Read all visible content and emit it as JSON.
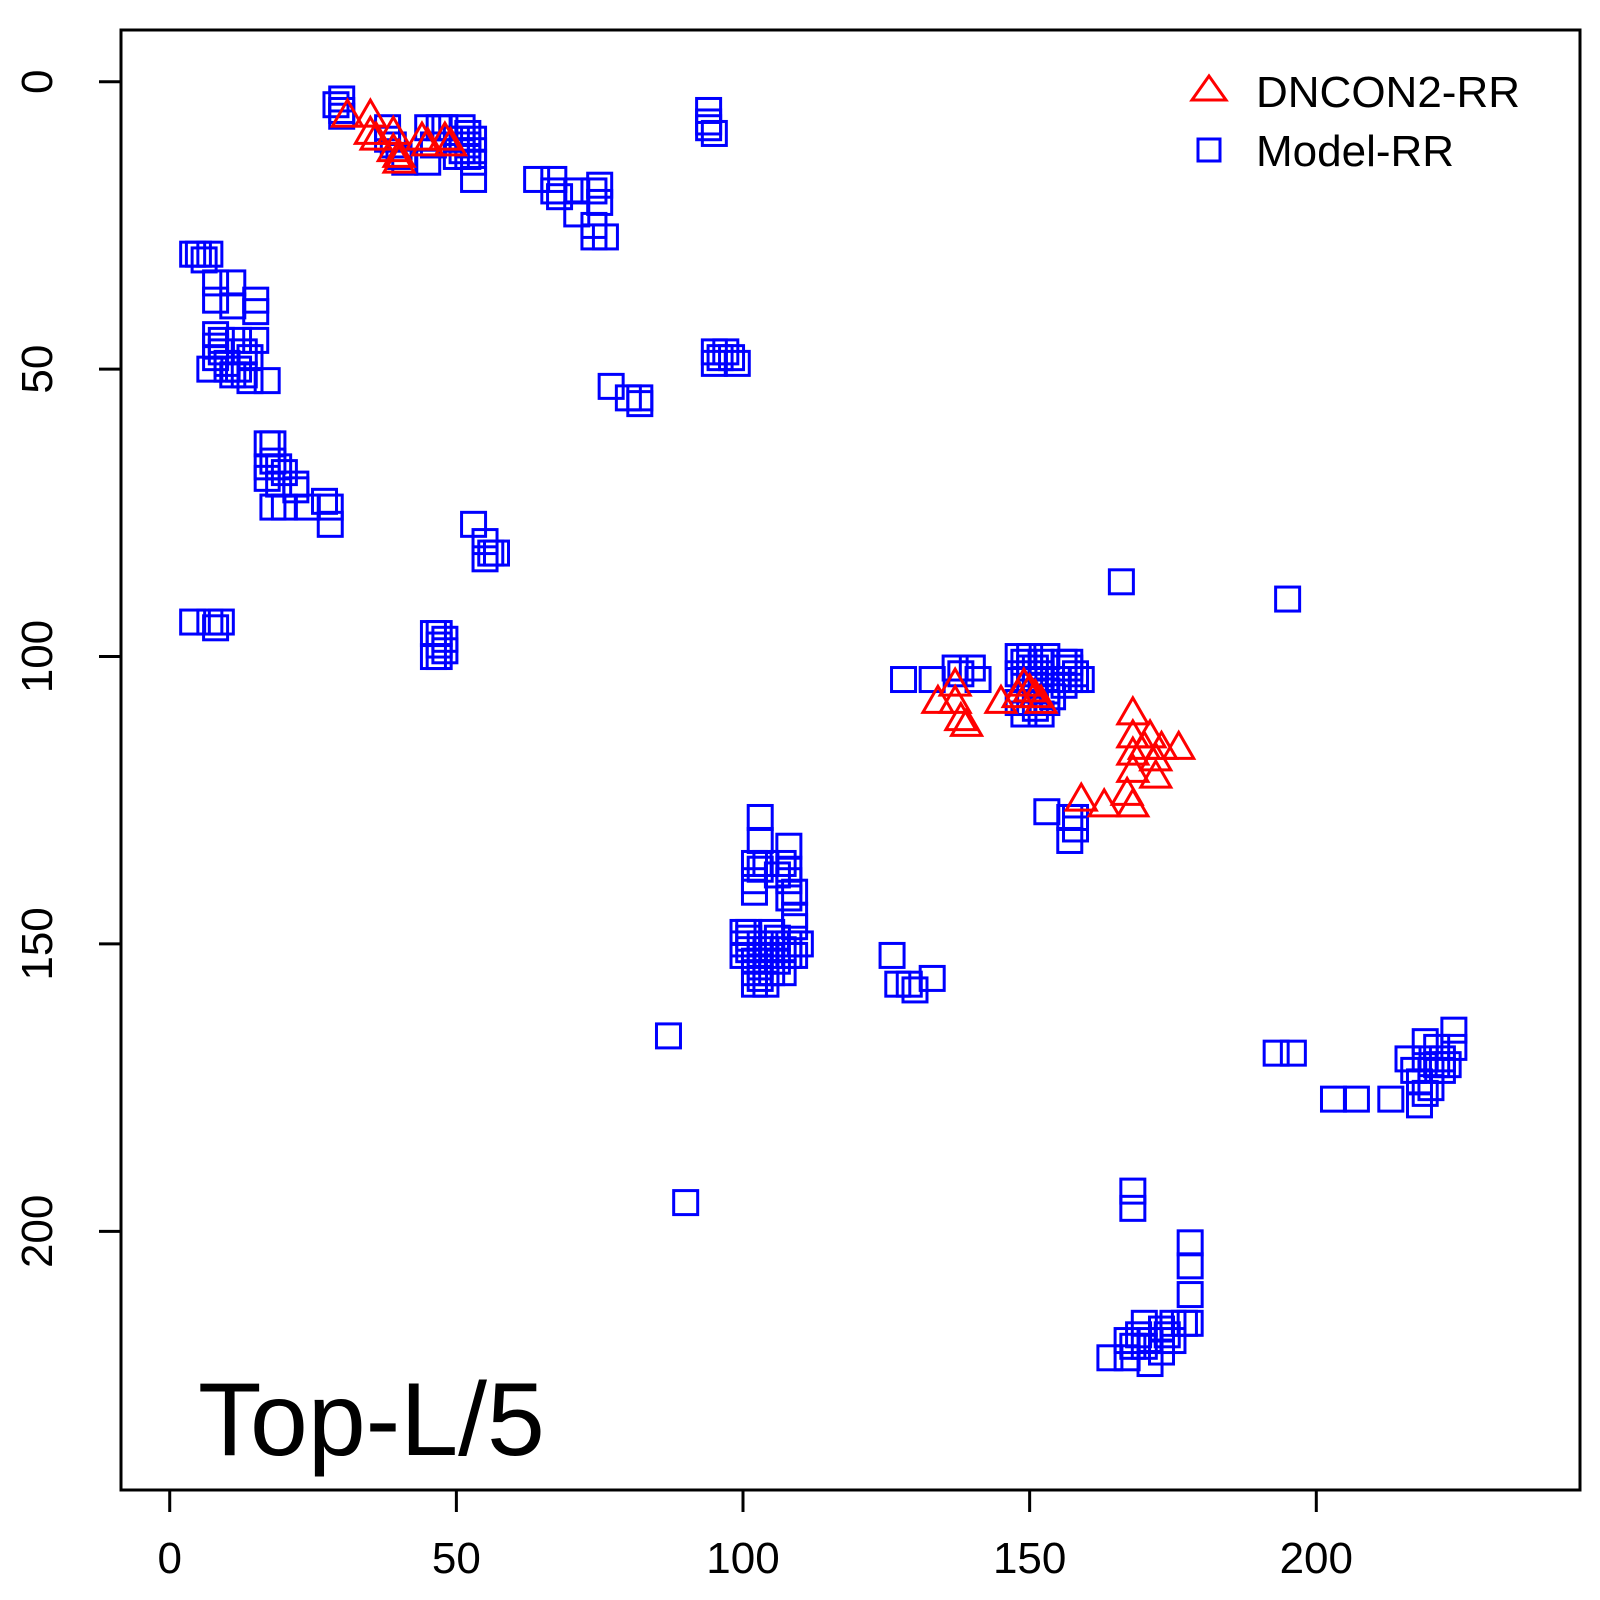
{
  "chart_data": {
    "type": "scatter",
    "title": "",
    "xlabel": "",
    "ylabel": "",
    "xlim": [
      -8.5,
      246
    ],
    "ylim": [
      -9,
      245
    ],
    "y_reversed": true,
    "grid": false,
    "legend_position": "top-right",
    "annotation": "Top-L/5",
    "x_ticks": [
      0,
      50,
      100,
      150,
      200
    ],
    "y_ticks": [
      0,
      50,
      100,
      150,
      200
    ],
    "series": [
      {
        "name": "DNCON2-RR",
        "marker": "triangle",
        "color": "#ff0000",
        "points": [
          [
            31,
            6
          ],
          [
            35,
            6
          ],
          [
            35,
            9
          ],
          [
            36,
            10
          ],
          [
            39,
            9
          ],
          [
            39,
            12
          ],
          [
            40,
            13
          ],
          [
            40,
            14
          ],
          [
            44,
            10
          ],
          [
            45,
            11
          ],
          [
            48,
            10
          ],
          [
            49,
            11
          ],
          [
            134,
            108
          ],
          [
            137,
            105
          ],
          [
            137,
            108
          ],
          [
            138,
            111
          ],
          [
            139,
            112
          ],
          [
            145,
            108
          ],
          [
            148,
            107
          ],
          [
            149,
            105
          ],
          [
            150,
            106
          ],
          [
            151,
            107
          ],
          [
            152,
            108
          ],
          [
            159,
            125
          ],
          [
            163,
            126
          ],
          [
            167,
            124
          ],
          [
            168,
            126
          ],
          [
            168,
            110
          ],
          [
            168,
            114
          ],
          [
            168,
            117
          ],
          [
            168,
            120
          ],
          [
            170,
            116
          ],
          [
            171,
            114
          ],
          [
            172,
            118
          ],
          [
            172,
            121
          ],
          [
            173,
            116
          ],
          [
            176,
            116
          ]
        ]
      },
      {
        "name": "Model-RR",
        "marker": "square",
        "color": "#0000ff",
        "points": [
          [
            29,
            4
          ],
          [
            30,
            3
          ],
          [
            30,
            5
          ],
          [
            30,
            6
          ],
          [
            38,
            8
          ],
          [
            38,
            10
          ],
          [
            39,
            11
          ],
          [
            40,
            13
          ],
          [
            41,
            14
          ],
          [
            45,
            8
          ],
          [
            45,
            14
          ],
          [
            46,
            11
          ],
          [
            47,
            8
          ],
          [
            48,
            8
          ],
          [
            50,
            10
          ],
          [
            51,
            8
          ],
          [
            51,
            10
          ],
          [
            51,
            12
          ],
          [
            52,
            9
          ],
          [
            52,
            11
          ],
          [
            53,
            12
          ],
          [
            53,
            10
          ],
          [
            53,
            14
          ],
          [
            53,
            17
          ],
          [
            52,
            13
          ],
          [
            50,
            13
          ],
          [
            94,
            5
          ],
          [
            94,
            7
          ],
          [
            95,
            9
          ],
          [
            94,
            8
          ],
          [
            64,
            17
          ],
          [
            67,
            17
          ],
          [
            67,
            19
          ],
          [
            68,
            20
          ],
          [
            71,
            19
          ],
          [
            71,
            23
          ],
          [
            74,
            19
          ],
          [
            75,
            21
          ],
          [
            74,
            25
          ],
          [
            74,
            27
          ],
          [
            76,
            27
          ],
          [
            75,
            18
          ],
          [
            4,
            30
          ],
          [
            5,
            30
          ],
          [
            6,
            31
          ],
          [
            7,
            30
          ],
          [
            8,
            35
          ],
          [
            8,
            38
          ],
          [
            11,
            35
          ],
          [
            11,
            39
          ],
          [
            15,
            38
          ],
          [
            15,
            40
          ],
          [
            8,
            44
          ],
          [
            8,
            46
          ],
          [
            8,
            48
          ],
          [
            9,
            47
          ],
          [
            10,
            49
          ],
          [
            11,
            51
          ],
          [
            13,
            47
          ],
          [
            14,
            48
          ],
          [
            7,
            50
          ],
          [
            10,
            50
          ],
          [
            12,
            50
          ],
          [
            13,
            51
          ],
          [
            14,
            52
          ],
          [
            17,
            52
          ],
          [
            15,
            45
          ],
          [
            12,
            45
          ],
          [
            9,
            45
          ],
          [
            17,
            63
          ],
          [
            18,
            63
          ],
          [
            17,
            67
          ],
          [
            18,
            66
          ],
          [
            19,
            67
          ],
          [
            20,
            68
          ],
          [
            17,
            69
          ],
          [
            19,
            70
          ],
          [
            18,
            74
          ],
          [
            20,
            74
          ],
          [
            22,
            71
          ],
          [
            24,
            74
          ],
          [
            27,
            73
          ],
          [
            28,
            74
          ],
          [
            28,
            77
          ],
          [
            22,
            70
          ],
          [
            53,
            77
          ],
          [
            55,
            80
          ],
          [
            55,
            83
          ],
          [
            56,
            82
          ],
          [
            57,
            82
          ],
          [
            4,
            94
          ],
          [
            7,
            94
          ],
          [
            8,
            95
          ],
          [
            9,
            94
          ],
          [
            46,
            96
          ],
          [
            47,
            98
          ],
          [
            48,
            99
          ],
          [
            47,
            96
          ],
          [
            48,
            97
          ],
          [
            46,
            100
          ],
          [
            47,
            100
          ],
          [
            95,
            47
          ],
          [
            95,
            49
          ],
          [
            97,
            47
          ],
          [
            98,
            48
          ],
          [
            99,
            49
          ],
          [
            96,
            48
          ],
          [
            77,
            53
          ],
          [
            80,
            55
          ],
          [
            82,
            56
          ],
          [
            82,
            55
          ],
          [
            166,
            87
          ],
          [
            195,
            90
          ],
          [
            128,
            104
          ],
          [
            133,
            104
          ],
          [
            137,
            102
          ],
          [
            140,
            102
          ],
          [
            141,
            104
          ],
          [
            138,
            103
          ],
          [
            148,
            100
          ],
          [
            148,
            103
          ],
          [
            149,
            101
          ],
          [
            150,
            100
          ],
          [
            151,
            102
          ],
          [
            150,
            104
          ],
          [
            151,
            105
          ],
          [
            152,
            104
          ],
          [
            152,
            103
          ],
          [
            150,
            108
          ],
          [
            152,
            110
          ],
          [
            153,
            106
          ],
          [
            153,
            108
          ],
          [
            154,
            107
          ],
          [
            151,
            109
          ],
          [
            149,
            110
          ],
          [
            148,
            108
          ],
          [
            152,
            101
          ],
          [
            153,
            100
          ],
          [
            150,
            102
          ],
          [
            149,
            104
          ],
          [
            156,
            101
          ],
          [
            156,
            102
          ],
          [
            157,
            104
          ],
          [
            158,
            103
          ],
          [
            158,
            104
          ],
          [
            157,
            102
          ],
          [
            156,
            105
          ],
          [
            155,
            104
          ],
          [
            159,
            104
          ],
          [
            157,
            101
          ],
          [
            153,
            127
          ],
          [
            157,
            128
          ],
          [
            158,
            130
          ],
          [
            157,
            132
          ],
          [
            158,
            128
          ],
          [
            103,
            128
          ],
          [
            103,
            132
          ],
          [
            102,
            136
          ],
          [
            102,
            139
          ],
          [
            102,
            141
          ],
          [
            103,
            137
          ],
          [
            104,
            136
          ],
          [
            106,
            138
          ],
          [
            107,
            136
          ],
          [
            108,
            133
          ],
          [
            108,
            137
          ],
          [
            108,
            139
          ],
          [
            108,
            142
          ],
          [
            109,
            141
          ],
          [
            100,
            148
          ],
          [
            100,
            150
          ],
          [
            100,
            152
          ],
          [
            101,
            149
          ],
          [
            101,
            151
          ],
          [
            102,
            153
          ],
          [
            102,
            155
          ],
          [
            103,
            150
          ],
          [
            103,
            152
          ],
          [
            103,
            154
          ],
          [
            103,
            156
          ],
          [
            104,
            151
          ],
          [
            104,
            153
          ],
          [
            104,
            155
          ],
          [
            104,
            157
          ],
          [
            105,
            148
          ],
          [
            105,
            150
          ],
          [
            105,
            152
          ],
          [
            105,
            155
          ],
          [
            106,
            149
          ],
          [
            106,
            153
          ],
          [
            107,
            151
          ],
          [
            107,
            155
          ],
          [
            108,
            150
          ],
          [
            108,
            152
          ],
          [
            109,
            147
          ],
          [
            109,
            145
          ],
          [
            109,
            152
          ],
          [
            110,
            150
          ],
          [
            102,
            157
          ],
          [
            101,
            148
          ],
          [
            126,
            152
          ],
          [
            127,
            157
          ],
          [
            129,
            157
          ],
          [
            130,
            158
          ],
          [
            133,
            156
          ],
          [
            87,
            166
          ],
          [
            90,
            195
          ],
          [
            193,
            169
          ],
          [
            196,
            169
          ],
          [
            203,
            177
          ],
          [
            207,
            177
          ],
          [
            213,
            177
          ],
          [
            216,
            170
          ],
          [
            217,
            172
          ],
          [
            218,
            174
          ],
          [
            218,
            178
          ],
          [
            219,
            167
          ],
          [
            219,
            170
          ],
          [
            220,
            172
          ],
          [
            220,
            175
          ],
          [
            221,
            168
          ],
          [
            221,
            171
          ],
          [
            222,
            170
          ],
          [
            222,
            172
          ],
          [
            224,
            165
          ],
          [
            224,
            168
          ],
          [
            223,
            171
          ],
          [
            219,
            176
          ],
          [
            168,
            193
          ],
          [
            168,
            196
          ],
          [
            178,
            202
          ],
          [
            178,
            206
          ],
          [
            178,
            211
          ],
          [
            178,
            216
          ],
          [
            164,
            222
          ],
          [
            167,
            219
          ],
          [
            167,
            222
          ],
          [
            168,
            220
          ],
          [
            169,
            218
          ],
          [
            170,
            216
          ],
          [
            170,
            220
          ],
          [
            171,
            219
          ],
          [
            171,
            223
          ],
          [
            173,
            217
          ],
          [
            173,
            221
          ],
          [
            174,
            218
          ],
          [
            175,
            216
          ],
          [
            175,
            219
          ],
          [
            177,
            216
          ]
        ]
      }
    ]
  }
}
